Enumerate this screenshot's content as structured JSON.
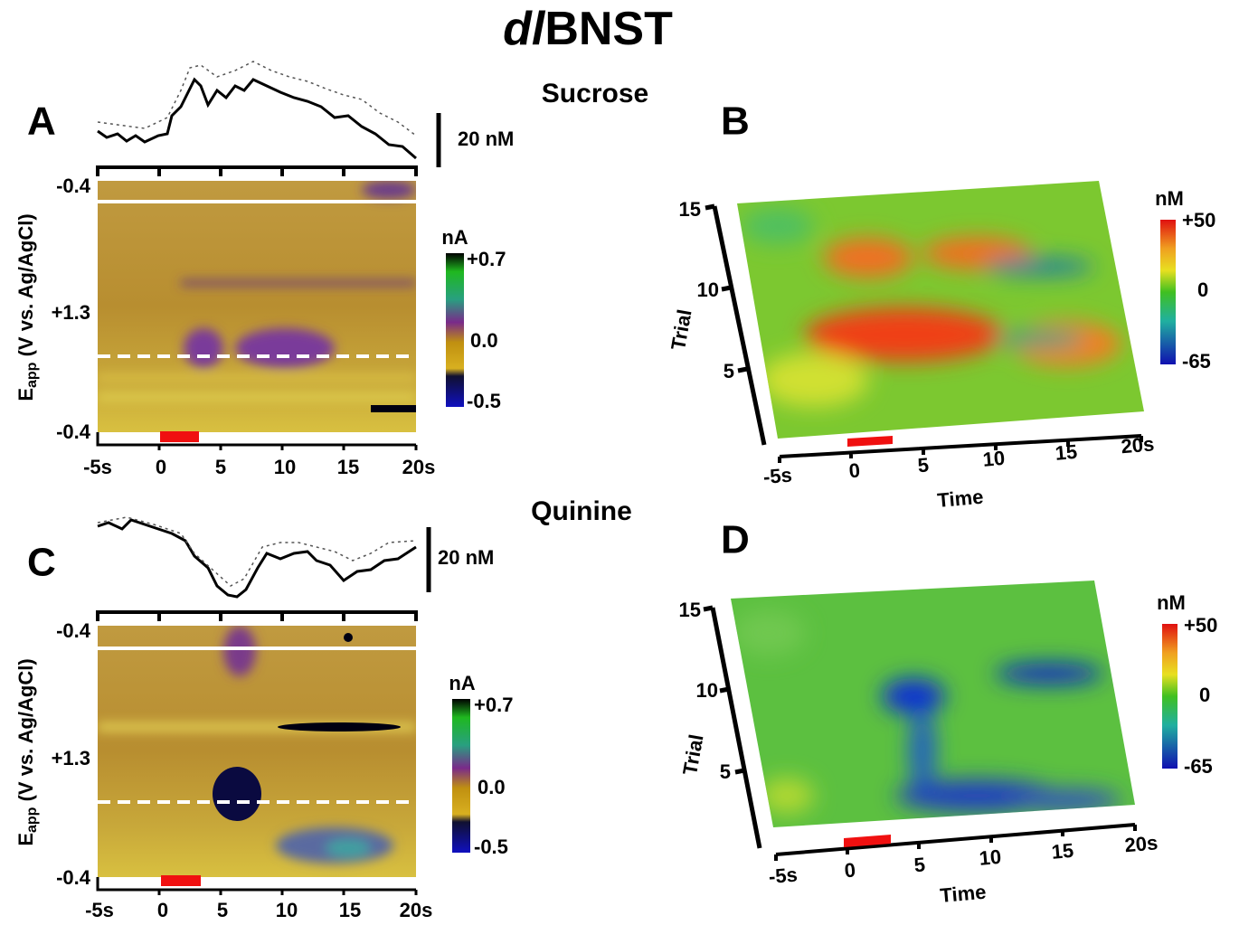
{
  "title_italic": "dl",
  "title": "BNST",
  "panels": [
    {
      "letter": "A",
      "stimulus": "Sucrose",
      "scale_bar": "20 nM",
      "y_axis_label": "E",
      "y_axis_subscript": "app",
      "y_axis_unit": " (V vs. Ag/AgCl)",
      "y_ticks": [
        "-0.4",
        "+1.3",
        "-0.4"
      ],
      "x_ticks": [
        "-5s",
        "0",
        "5",
        "10",
        "15",
        "20s"
      ],
      "colorbar_unit": "nA",
      "colorbar_ticks": [
        "+0.7",
        "0.0",
        "-0.5"
      ]
    },
    {
      "letter": "B",
      "y_axis_label": "Trial",
      "y_ticks": [
        "15",
        "10",
        "5"
      ],
      "x_axis_label": "Time",
      "x_ticks": [
        "-5s",
        "0",
        "5",
        "10",
        "15",
        "20s"
      ],
      "colorbar_unit": "nM",
      "colorbar_ticks": [
        "+50",
        "0",
        "-65"
      ]
    },
    {
      "letter": "C",
      "stimulus": "Quinine",
      "scale_bar": "20 nM",
      "y_axis_label": "E",
      "y_axis_subscript": "app",
      "y_axis_unit": " (V vs. Ag/AgCl)",
      "y_ticks": [
        "-0.4",
        "+1.3",
        "-0.4"
      ],
      "x_ticks": [
        "-5s",
        "0",
        "5",
        "10",
        "15",
        "20s"
      ],
      "colorbar_unit": "nA",
      "colorbar_ticks": [
        "+0.7",
        "0.0",
        "-0.5"
      ]
    },
    {
      "letter": "D",
      "y_axis_label": "Trial",
      "y_ticks": [
        "15",
        "10",
        "5"
      ],
      "x_axis_label": "Time",
      "x_ticks": [
        "-5s",
        "0",
        "5",
        "10",
        "15",
        "20s"
      ],
      "colorbar_unit": "nM",
      "colorbar_ticks": [
        "+50",
        "0",
        "-65"
      ]
    }
  ]
}
